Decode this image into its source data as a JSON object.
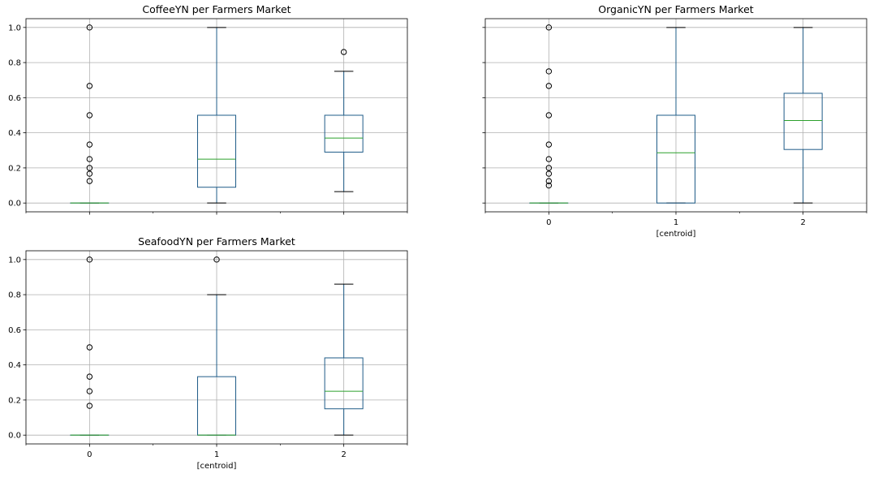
{
  "chart_data": [
    {
      "type": "box",
      "title": "CoffeeYN per Farmers Market",
      "xlabel": "",
      "ylabel": "",
      "categories": [
        "0",
        "1",
        "2"
      ],
      "show_xticklabels": false,
      "ylim": [
        -0.05,
        1.05
      ],
      "yticks": [
        "0.0",
        "0.2",
        "0.4",
        "0.6",
        "0.8",
        "1.0"
      ],
      "grid": true,
      "boxes": [
        {
          "category": "0",
          "whisker_low": 0.0,
          "q1": 0.0,
          "median": 0.0,
          "q3": 0.0,
          "whisker_high": 0.0,
          "fliers": [
            0.125,
            0.167,
            0.2,
            0.25,
            0.333,
            0.5,
            0.667,
            1.0
          ]
        },
        {
          "category": "1",
          "whisker_low": 0.0,
          "q1": 0.09,
          "median": 0.25,
          "q3": 0.5,
          "whisker_high": 1.0,
          "fliers": []
        },
        {
          "category": "2",
          "whisker_low": 0.065,
          "q1": 0.29,
          "median": 0.37,
          "q3": 0.5,
          "whisker_high": 0.75,
          "fliers": [
            0.86
          ]
        }
      ]
    },
    {
      "type": "box",
      "title": "OrganicYN per Farmers Market",
      "xlabel": "[centroid]",
      "ylabel": "",
      "categories": [
        "0",
        "1",
        "2"
      ],
      "show_xticklabels": true,
      "ylim": [
        -0.05,
        1.05
      ],
      "yticks": [
        "0.0",
        "0.2",
        "0.4",
        "0.6",
        "0.8",
        "1.0"
      ],
      "grid": true,
      "boxes": [
        {
          "category": "0",
          "whisker_low": 0.0,
          "q1": 0.0,
          "median": 0.0,
          "q3": 0.0,
          "whisker_high": 0.0,
          "fliers": [
            0.1,
            0.125,
            0.167,
            0.2,
            0.25,
            0.333,
            0.5,
            0.667,
            0.75,
            1.0
          ]
        },
        {
          "category": "1",
          "whisker_low": 0.0,
          "q1": 0.0,
          "median": 0.286,
          "q3": 0.5,
          "whisker_high": 1.0,
          "fliers": []
        },
        {
          "category": "2",
          "whisker_low": 0.0,
          "q1": 0.305,
          "median": 0.47,
          "q3": 0.625,
          "whisker_high": 1.0,
          "fliers": []
        }
      ]
    },
    {
      "type": "box",
      "title": "SeafoodYN per Farmers Market",
      "xlabel": "[centroid]",
      "ylabel": "",
      "categories": [
        "0",
        "1",
        "2"
      ],
      "show_xticklabels": true,
      "ylim": [
        -0.05,
        1.05
      ],
      "yticks": [
        "0.0",
        "0.2",
        "0.4",
        "0.6",
        "0.8",
        "1.0"
      ],
      "grid": true,
      "boxes": [
        {
          "category": "0",
          "whisker_low": 0.0,
          "q1": 0.0,
          "median": 0.0,
          "q3": 0.0,
          "whisker_high": 0.0,
          "fliers": [
            0.167,
            0.25,
            0.333,
            0.5,
            1.0
          ]
        },
        {
          "category": "1",
          "whisker_low": 0.0,
          "q1": 0.0,
          "median": 0.0,
          "q3": 0.333,
          "whisker_high": 0.8,
          "fliers": [
            1.0
          ]
        },
        {
          "category": "2",
          "whisker_low": 0.0,
          "q1": 0.15,
          "median": 0.25,
          "q3": 0.44,
          "whisker_high": 0.86,
          "fliers": []
        }
      ]
    }
  ],
  "colors": {
    "box": "#1f5c88",
    "median": "#2ca02c",
    "whisker_cap": "#000000",
    "grid": "#b0b0b0",
    "axis": "#000000"
  }
}
